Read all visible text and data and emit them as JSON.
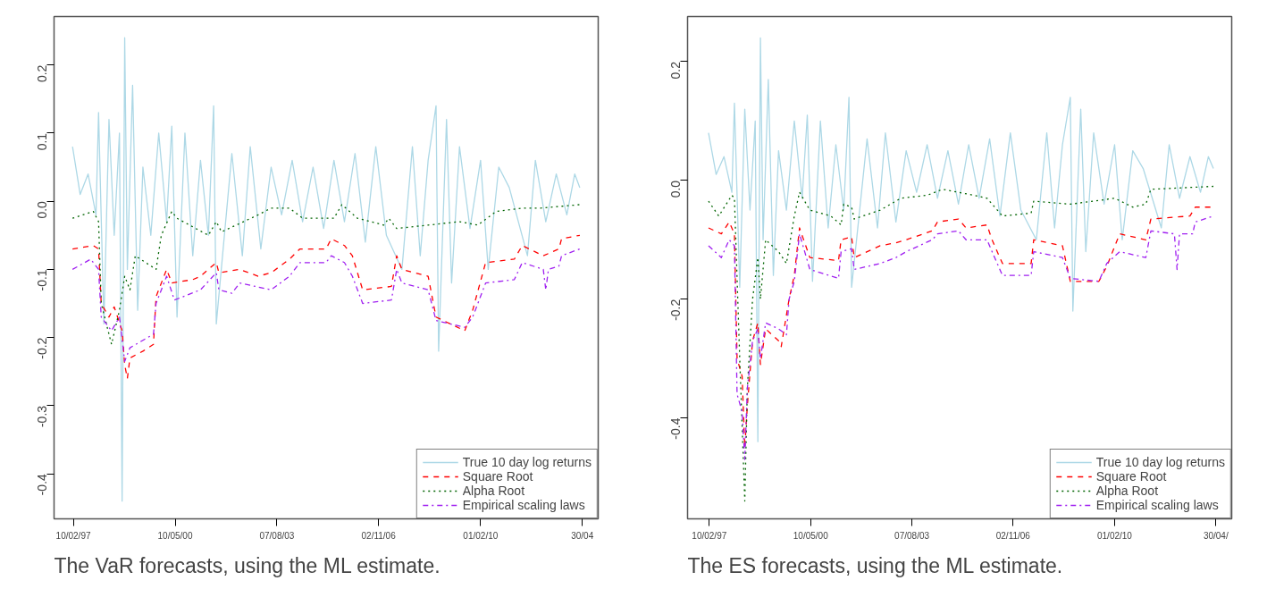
{
  "chart_data": [
    {
      "type": "line",
      "annotations": [
        "The VaR forecasts, using the ML estimate."
      ],
      "legend": "bottom right",
      "grid": false,
      "marker": "none",
      "xlim": [
        "1996-07",
        "2013-11"
      ],
      "ylim": [
        -0.466,
        0.271
      ],
      "xticks": [
        {
          "value": "1997-02-10",
          "label": "10/02/97"
        },
        {
          "value": "2000-05-10",
          "label": "10/05/00"
        },
        {
          "value": "2003-08-07",
          "label": "07/08/03"
        },
        {
          "value": "2006-11-02",
          "label": "02/11/06"
        },
        {
          "value": "2010-02-01",
          "label": "01/02/10"
        },
        {
          "value": "2013-04-30",
          "label": "30/04"
        }
      ],
      "yticks": [
        -0.4,
        -0.3,
        -0.2,
        -0.1,
        {
          "value": 0,
          "label": "0.0"
        },
        0.1,
        0.2
      ],
      "series": [
        {
          "name": "True 10 day log returns",
          "color": "#add8e6",
          "line_style": "solid",
          "x": [
            "1997-02",
            "1997-05",
            "1997-08",
            "1997-11",
            "1997-12",
            "1998-02",
            "1998-04",
            "1998-06",
            "1998-08",
            "1998-09",
            "1998-10",
            "1998-11",
            "1999-01",
            "1999-03",
            "1999-05",
            "1999-08",
            "1999-11",
            "2000-02",
            "2000-04",
            "2000-06",
            "2000-09",
            "2000-12",
            "2001-03",
            "2001-06",
            "2001-08",
            "2001-09",
            "2002-03",
            "2002-07",
            "2002-10",
            "2003-02",
            "2003-06",
            "2003-10",
            "2004-02",
            "2004-06",
            "2004-10",
            "2005-02",
            "2005-06",
            "2005-10",
            "2006-02",
            "2006-06",
            "2006-10",
            "2007-02",
            "2007-08",
            "2007-12",
            "2008-03",
            "2008-06",
            "2008-09",
            "2008-10",
            "2009-01",
            "2009-03",
            "2009-06",
            "2009-10",
            "2010-02",
            "2010-05",
            "2010-09",
            "2011-01",
            "2011-08",
            "2011-11",
            "2012-03",
            "2012-07",
            "2012-11",
            "2013-02",
            "2013-04"
          ],
          "values": [
            0.08,
            0.01,
            0.04,
            -0.02,
            0.13,
            -0.18,
            0.12,
            -0.05,
            0.1,
            -0.44,
            0.24,
            -0.1,
            0.17,
            -0.16,
            0.05,
            -0.05,
            0.1,
            -0.03,
            0.11,
            -0.17,
            0.1,
            -0.08,
            0.06,
            -0.05,
            0.14,
            -0.18,
            0.07,
            -0.08,
            0.08,
            -0.07,
            0.05,
            -0.02,
            0.06,
            -0.03,
            0.05,
            -0.04,
            0.06,
            -0.03,
            0.07,
            -0.06,
            0.08,
            -0.05,
            -0.1,
            0.08,
            -0.08,
            0.06,
            0.14,
            -0.22,
            0.12,
            -0.12,
            0.08,
            -0.04,
            0.06,
            -0.1,
            0.05,
            0.02,
            -0.08,
            0.06,
            -0.03,
            0.04,
            -0.02,
            0.04,
            0.02
          ]
        },
        {
          "name": "Square Root",
          "color": "#ff0000",
          "line_style": "dashed",
          "x": [
            "1997-02",
            "1997-10",
            "1997-12",
            "1998-01",
            "1998-04",
            "1998-06",
            "1998-09",
            "1998-10",
            "1998-11",
            "1998-12",
            "1999-05",
            "1999-09",
            "1999-10",
            "2000-02",
            "2000-04",
            "2000-12",
            "2001-03",
            "2001-06",
            "2001-09",
            "2001-10",
            "2002-06",
            "2003-01",
            "2003-06",
            "2004-01",
            "2004-05",
            "2005-03",
            "2005-05",
            "2005-10",
            "2006-01",
            "2006-05",
            "2007-04",
            "2007-06",
            "2007-08",
            "2008-06",
            "2008-09",
            "2009-08",
            "2009-11",
            "2010-04",
            "2011-03",
            "2011-06",
            "2012-02",
            "2012-08",
            "2012-09",
            "2013-04"
          ],
          "values": [
            -0.07,
            -0.065,
            -0.07,
            -0.15,
            -0.17,
            -0.155,
            -0.19,
            -0.24,
            -0.26,
            -0.23,
            -0.22,
            -0.21,
            -0.14,
            -0.1,
            -0.12,
            -0.115,
            -0.11,
            -0.1,
            -0.09,
            -0.105,
            -0.1,
            -0.11,
            -0.105,
            -0.085,
            -0.07,
            -0.07,
            -0.055,
            -0.065,
            -0.08,
            -0.13,
            -0.125,
            -0.08,
            -0.1,
            -0.11,
            -0.17,
            -0.19,
            -0.16,
            -0.09,
            -0.085,
            -0.065,
            -0.08,
            -0.07,
            -0.055,
            -0.05
          ]
        },
        {
          "name": "Alpha Root",
          "color": "#006400",
          "line_style": "dotted",
          "x": [
            "1997-02",
            "1997-10",
            "1997-12",
            "1998-01",
            "1998-05",
            "1998-08",
            "1998-10",
            "1998-12",
            "1999-02",
            "1999-10",
            "1999-12",
            "2000-04",
            "2000-06",
            "2001-06",
            "2001-09",
            "2001-11",
            "2003-01",
            "2003-06",
            "2004-01",
            "2004-06",
            "2005-06",
            "2005-09",
            "2006-03",
            "2007-01",
            "2007-03",
            "2007-06",
            "2008-06",
            "2009-06",
            "2010-01",
            "2010-08",
            "2011-06",
            "2012-01",
            "2013-04"
          ],
          "values": [
            -0.025,
            -0.015,
            -0.03,
            -0.15,
            -0.21,
            -0.16,
            -0.11,
            -0.13,
            -0.08,
            -0.1,
            -0.05,
            -0.015,
            -0.025,
            -0.05,
            -0.03,
            -0.045,
            -0.02,
            -0.01,
            -0.01,
            -0.025,
            -0.025,
            -0.005,
            -0.025,
            -0.035,
            -0.025,
            -0.04,
            -0.035,
            -0.03,
            -0.035,
            -0.015,
            -0.01,
            -0.01,
            -0.005
          ]
        },
        {
          "name": "Empirical scaling laws",
          "color": "#a020f0",
          "line_style": "dashdot",
          "x": [
            "1997-02",
            "1997-09",
            "1997-12",
            "1998-01",
            "1998-05",
            "1998-08",
            "1998-10",
            "1998-12",
            "1999-09",
            "1999-10",
            "2000-02",
            "2000-05",
            "2001-03",
            "2001-09",
            "2001-10",
            "2002-03",
            "2002-06",
            "2003-06",
            "2004-01",
            "2004-05",
            "2005-03",
            "2005-05",
            "2005-10",
            "2006-01",
            "2006-05",
            "2007-04",
            "2007-06",
            "2007-08",
            "2008-06",
            "2008-09",
            "2009-08",
            "2009-11",
            "2010-04",
            "2011-03",
            "2011-06",
            "2012-02",
            "2012-03",
            "2012-04",
            "2012-08",
            "2012-09",
            "2013-04"
          ],
          "values": [
            -0.1,
            -0.085,
            -0.1,
            -0.17,
            -0.19,
            -0.17,
            -0.235,
            -0.215,
            -0.195,
            -0.15,
            -0.11,
            -0.145,
            -0.13,
            -0.105,
            -0.13,
            -0.135,
            -0.12,
            -0.13,
            -0.11,
            -0.09,
            -0.09,
            -0.08,
            -0.09,
            -0.11,
            -0.15,
            -0.145,
            -0.1,
            -0.12,
            -0.13,
            -0.175,
            -0.185,
            -0.17,
            -0.12,
            -0.115,
            -0.09,
            -0.1,
            -0.13,
            -0.1,
            -0.095,
            -0.08,
            -0.07
          ]
        }
      ]
    },
    {
      "type": "line",
      "annotations": [
        "The ES forecasts, using the ML estimate."
      ],
      "legend": "bottom right",
      "grid": false,
      "marker": "none",
      "xlim": [
        "1996-06",
        "2013-11"
      ],
      "ylim": [
        -0.57,
        0.276
      ],
      "xticks": [
        {
          "value": "1997-02-10",
          "label": "10/02/97"
        },
        {
          "value": "2000-05-10",
          "label": "10/05/00"
        },
        {
          "value": "2003-08-07",
          "label": "07/08/03"
        },
        {
          "value": "2006-11-02",
          "label": "02/11/06"
        },
        {
          "value": "2010-02-01",
          "label": "01/02/10"
        },
        {
          "value": "2013-04-30",
          "label": "30/04/"
        }
      ],
      "yticks": [
        -0.4,
        -0.2,
        {
          "value": 0,
          "label": "0.0"
        },
        0.2
      ],
      "series": [
        {
          "name": "True 10 day log returns",
          "color": "#add8e6",
          "line_style": "solid",
          "x": [
            "1997-02",
            "1997-05",
            "1997-08",
            "1997-11",
            "1997-12",
            "1998-02",
            "1998-04",
            "1998-06",
            "1998-08",
            "1998-09",
            "1998-10",
            "1998-11",
            "1999-01",
            "1999-03",
            "1999-05",
            "1999-08",
            "1999-11",
            "2000-02",
            "2000-04",
            "2000-06",
            "2000-09",
            "2000-12",
            "2001-03",
            "2001-06",
            "2001-08",
            "2001-09",
            "2002-03",
            "2002-07",
            "2002-10",
            "2003-02",
            "2003-06",
            "2003-10",
            "2004-02",
            "2004-06",
            "2004-10",
            "2005-02",
            "2005-06",
            "2005-10",
            "2006-02",
            "2006-06",
            "2006-10",
            "2007-02",
            "2007-08",
            "2007-12",
            "2008-03",
            "2008-06",
            "2008-09",
            "2008-10",
            "2009-01",
            "2009-03",
            "2009-06",
            "2009-10",
            "2010-02",
            "2010-05",
            "2010-09",
            "2011-01",
            "2011-08",
            "2011-11",
            "2012-03",
            "2012-07",
            "2012-11",
            "2013-02",
            "2013-04"
          ],
          "values": [
            0.08,
            0.01,
            0.04,
            -0.02,
            0.13,
            -0.18,
            0.12,
            -0.05,
            0.1,
            -0.44,
            0.24,
            -0.1,
            0.17,
            -0.16,
            0.05,
            -0.05,
            0.1,
            -0.03,
            0.11,
            -0.17,
            0.1,
            -0.08,
            0.06,
            -0.05,
            0.14,
            -0.18,
            0.07,
            -0.08,
            0.08,
            -0.07,
            0.05,
            -0.02,
            0.06,
            -0.03,
            0.05,
            -0.04,
            0.06,
            -0.03,
            0.07,
            -0.06,
            0.08,
            -0.05,
            -0.1,
            0.08,
            -0.08,
            0.06,
            0.14,
            -0.22,
            0.12,
            -0.12,
            0.08,
            -0.04,
            0.06,
            -0.1,
            0.05,
            0.02,
            -0.08,
            0.06,
            -0.03,
            0.04,
            -0.02,
            0.04,
            0.02
          ]
        },
        {
          "name": "Square Root",
          "color": "#ff0000",
          "line_style": "dashed",
          "x": [
            "1997-02",
            "1997-07",
            "1997-10",
            "1997-12",
            "1998-01",
            "1998-03",
            "1998-04",
            "1998-05",
            "1998-07",
            "1998-09",
            "1998-10",
            "1998-12",
            "1999-05",
            "1999-06",
            "1999-09",
            "1999-11",
            "2000-01",
            "2000-05",
            "2001-04",
            "2001-05",
            "2001-09",
            "2001-10",
            "2002-08",
            "2003-02",
            "2003-06",
            "2004-04",
            "2004-06",
            "2005-02",
            "2005-05",
            "2006-01",
            "2006-03",
            "2006-07",
            "2007-06",
            "2007-07",
            "2008-06",
            "2008-09",
            "2009-08",
            "2009-11",
            "2010-04",
            "2011-02",
            "2011-04",
            "2012-07",
            "2012-09",
            "2013-04"
          ],
          "values": [
            -0.08,
            -0.09,
            -0.07,
            -0.09,
            -0.3,
            -0.33,
            -0.45,
            -0.38,
            -0.27,
            -0.24,
            -0.31,
            -0.25,
            -0.27,
            -0.28,
            -0.2,
            -0.16,
            -0.08,
            -0.13,
            -0.135,
            -0.1,
            -0.095,
            -0.13,
            -0.11,
            -0.105,
            -0.1,
            -0.085,
            -0.07,
            -0.065,
            -0.08,
            -0.075,
            -0.1,
            -0.14,
            -0.14,
            -0.1,
            -0.11,
            -0.17,
            -0.17,
            -0.145,
            -0.09,
            -0.1,
            -0.065,
            -0.06,
            -0.045,
            -0.045
          ]
        },
        {
          "name": "Alpha Root",
          "color": "#006400",
          "line_style": "dotted",
          "x": [
            "1997-02",
            "1997-06",
            "1997-11",
            "1997-12",
            "1998-02",
            "1998-04",
            "1998-05",
            "1998-07",
            "1998-09",
            "1998-10",
            "1998-12",
            "1999-05",
            "1999-08",
            "1999-11",
            "2000-01",
            "2000-05",
            "2001-01",
            "2001-05",
            "2001-06",
            "2001-09",
            "2001-10",
            "2002-08",
            "2003-04",
            "2004-02",
            "2004-08",
            "2005-08",
            "2006-01",
            "2006-07",
            "2007-06",
            "2007-07",
            "2008-09",
            "2009-06",
            "2010-02",
            "2010-09",
            "2011-02",
            "2011-04",
            "2013-04"
          ],
          "values": [
            -0.035,
            -0.06,
            -0.025,
            -0.03,
            -0.3,
            -0.54,
            -0.35,
            -0.2,
            -0.13,
            -0.2,
            -0.1,
            -0.12,
            -0.14,
            -0.06,
            -0.02,
            -0.05,
            -0.06,
            -0.075,
            -0.04,
            -0.045,
            -0.065,
            -0.05,
            -0.03,
            -0.025,
            -0.015,
            -0.025,
            -0.03,
            -0.06,
            -0.055,
            -0.035,
            -0.04,
            -0.035,
            -0.03,
            -0.045,
            -0.04,
            -0.015,
            -0.01
          ]
        },
        {
          "name": "Empirical scaling laws",
          "color": "#a020f0",
          "line_style": "dashdot",
          "x": [
            "1997-02",
            "1997-07",
            "1997-10",
            "1997-12",
            "1998-01",
            "1998-03",
            "1998-04",
            "1998-05",
            "1998-07",
            "1998-09",
            "1998-10",
            "1998-12",
            "1999-05",
            "1999-08",
            "1999-09",
            "1999-11",
            "2000-01",
            "2000-05",
            "2001-04",
            "2001-05",
            "2001-09",
            "2001-10",
            "2002-08",
            "2003-02",
            "2003-06",
            "2004-04",
            "2004-06",
            "2005-02",
            "2005-05",
            "2006-01",
            "2006-03",
            "2006-07",
            "2007-06",
            "2007-07",
            "2008-06",
            "2008-09",
            "2009-08",
            "2009-11",
            "2010-04",
            "2011-02",
            "2011-04",
            "2012-01",
            "2012-02",
            "2012-03",
            "2012-08",
            "2012-09",
            "2013-04"
          ],
          "values": [
            -0.11,
            -0.13,
            -0.1,
            -0.11,
            -0.36,
            -0.39,
            -0.47,
            -0.35,
            -0.27,
            -0.25,
            -0.3,
            -0.24,
            -0.25,
            -0.26,
            -0.2,
            -0.17,
            -0.09,
            -0.15,
            -0.165,
            -0.12,
            -0.115,
            -0.15,
            -0.14,
            -0.13,
            -0.12,
            -0.1,
            -0.09,
            -0.085,
            -0.1,
            -0.1,
            -0.12,
            -0.16,
            -0.16,
            -0.12,
            -0.13,
            -0.165,
            -0.17,
            -0.14,
            -0.12,
            -0.13,
            -0.085,
            -0.09,
            -0.15,
            -0.09,
            -0.09,
            -0.07,
            -0.06
          ]
        }
      ]
    }
  ]
}
